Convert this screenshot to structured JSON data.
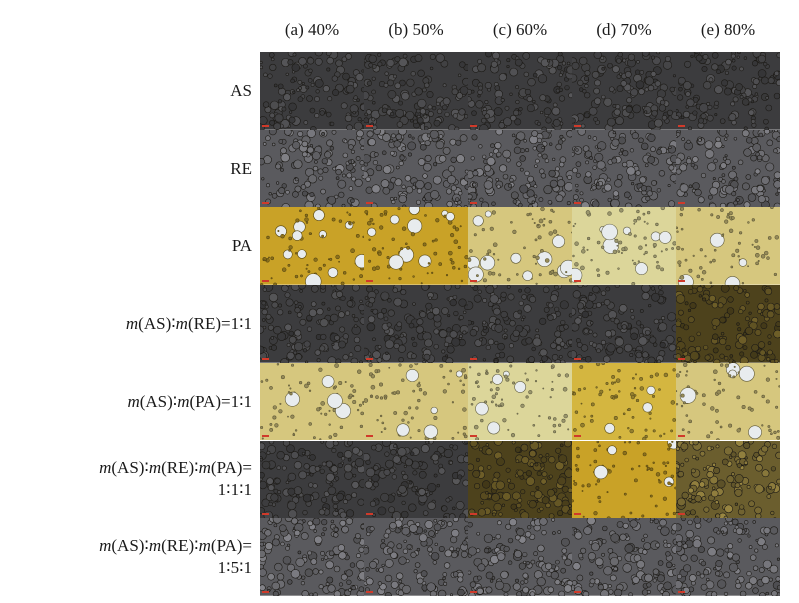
{
  "columns": [
    "(a) 40%",
    "(b) 50%",
    "(c) 60%",
    "(d) 70%",
    "(e) 80%"
  ],
  "rows": [
    {
      "label": "AS",
      "parts": null,
      "tones": [
        "gray-dark",
        "gray-dark",
        "gray-dark",
        "gray-dark",
        "gray-dark"
      ]
    },
    {
      "label": "RE",
      "parts": null,
      "tones": [
        "gray",
        "gray",
        "gray",
        "gray",
        "gray"
      ]
    },
    {
      "label": "PA",
      "parts": null,
      "tones": [
        "amber",
        "amber",
        "cream",
        "cream-light",
        "cream"
      ]
    },
    {
      "label": "",
      "parts": [
        "m",
        "(AS)∶",
        "m",
        "(RE)=1∶1"
      ],
      "tones": [
        "gray-dark",
        "gray-dark",
        "gray-dark",
        "gray-dark",
        "olive-dark"
      ]
    },
    {
      "label": "",
      "parts": [
        "m",
        "(AS)∶",
        "m",
        "(PA)=1∶1"
      ],
      "tones": [
        "cream",
        "cream",
        "cream-light",
        "amber-light",
        "cream"
      ]
    },
    {
      "label": "",
      "parts": [
        "m",
        "(AS)∶",
        "m",
        "(RE)∶",
        "m",
        "(PA)=",
        "1∶1∶1"
      ],
      "tones": [
        "gray-dark",
        "gray-dark",
        "olive-dark",
        "amber",
        "olive"
      ]
    },
    {
      "label": "",
      "parts": [
        "m",
        "(AS)∶",
        "m",
        "(RE)∶",
        "m",
        "(PA)=",
        "1∶5∶1"
      ],
      "tones": [
        "gray",
        "gray",
        "gray",
        "gray",
        "gray"
      ]
    }
  ],
  "tone_colors": {
    "gray-dark": "#3c3c3e",
    "gray": "#5a5a5e",
    "amber": "#c9a227",
    "amber-light": "#d4b640",
    "cream": "#d6c77e",
    "cream-light": "#dcd69a",
    "olive": "#6b5e2e",
    "olive-dark": "#4d421c"
  }
}
